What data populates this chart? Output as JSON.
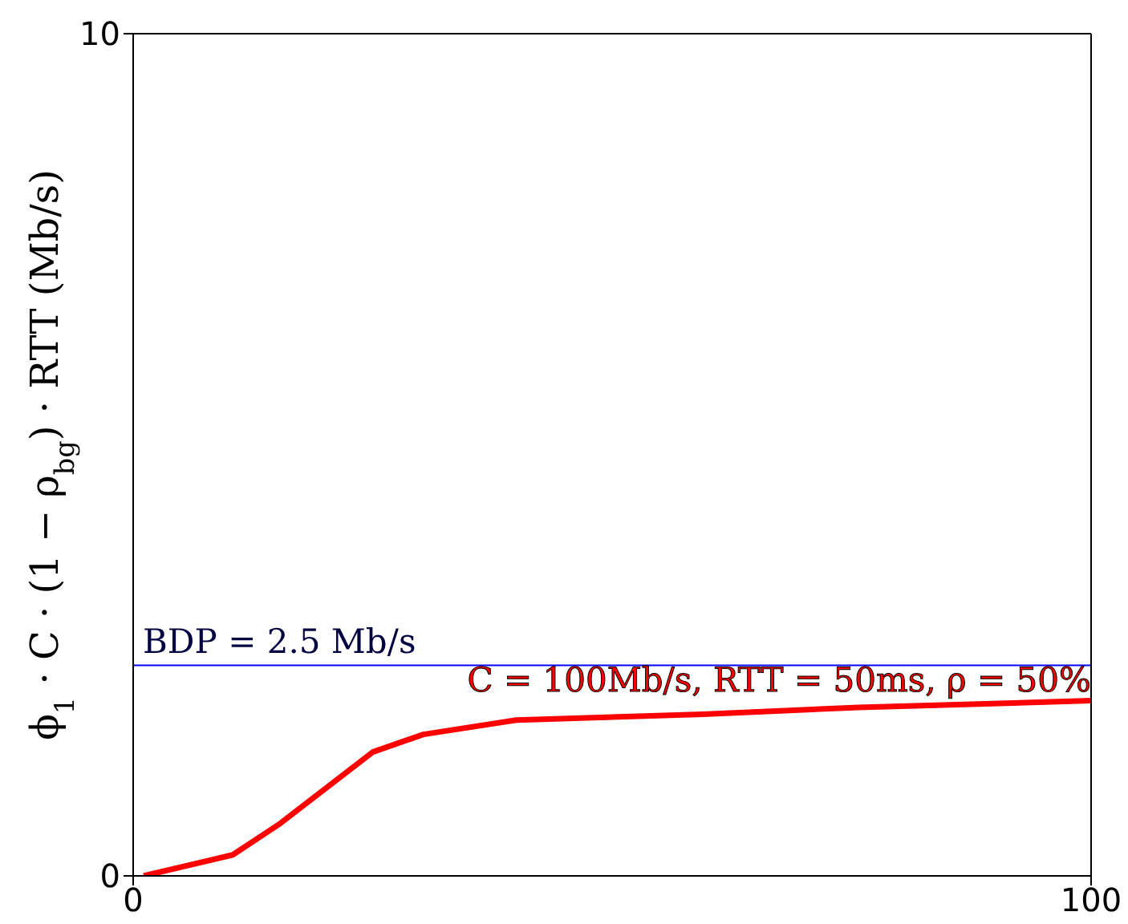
{
  "chart_data": {
    "type": "line",
    "ylabel": "ϕ$_{1}$ · C · (1 − ρ$_{bg}$) · RTT (Mb/s)",
    "xlim": [
      0,
      100
    ],
    "xticks": [
      0,
      100
    ],
    "ylim": [
      0,
      10
    ],
    "yticks": [
      0,
      10
    ],
    "marker": "none",
    "line_style": "solid",
    "series": [
      {
        "name": "C = 100Mb/s, RTT = 50ms, ρ = 50%",
        "color": "#ff0000",
        "x": [
          1.1,
          10.4,
          15.2,
          25,
          30.3,
          40,
          59.5,
          75.7,
          100
        ],
        "values": [
          0,
          0.25,
          0.61,
          1.47,
          1.68,
          1.85,
          1.92,
          2.0,
          2.08
        ]
      }
    ],
    "ref_lines": [
      {
        "axis": "y",
        "value": 2.5,
        "label": "BDP = 2.5 Mb/s",
        "color": "#0000ff",
        "line_style": "solid"
      }
    ]
  }
}
